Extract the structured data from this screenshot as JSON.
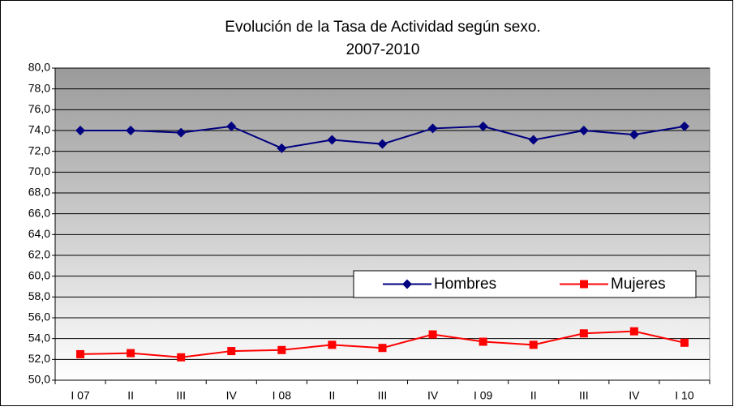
{
  "chart_data": {
    "type": "line",
    "title": "Evolución de la Tasa de Actividad según sexo.",
    "subtitle": "2007-2010",
    "categories": [
      "I 07",
      "II",
      "III",
      "IV",
      "I 08",
      "II",
      "III",
      "IV",
      "I 09",
      "II",
      "III",
      "IV",
      "I 10"
    ],
    "series": [
      {
        "name": "Hombres",
        "color": "#000080",
        "marker": "diamond",
        "values": [
          74.0,
          74.0,
          73.8,
          74.4,
          72.3,
          73.1,
          72.7,
          74.2,
          74.4,
          73.1,
          74.0,
          73.6,
          74.4
        ]
      },
      {
        "name": "Mujeres",
        "color": "#ff0000",
        "marker": "square",
        "values": [
          52.5,
          52.6,
          52.2,
          52.8,
          52.9,
          53.4,
          53.1,
          54.4,
          53.7,
          53.4,
          54.5,
          54.7,
          53.6
        ]
      }
    ],
    "ylim": [
      50,
      80
    ],
    "yticks": [
      {
        "value": 50,
        "label": "50,0"
      },
      {
        "value": 52,
        "label": "52,0"
      },
      {
        "value": 54,
        "label": "54,0"
      },
      {
        "value": 56,
        "label": "56,0"
      },
      {
        "value": 58,
        "label": "58,0"
      },
      {
        "value": 60,
        "label": "60,0"
      },
      {
        "value": 62,
        "label": "62,0"
      },
      {
        "value": 64,
        "label": "64,0"
      },
      {
        "value": 66,
        "label": "66,0"
      },
      {
        "value": 68,
        "label": "68,0"
      },
      {
        "value": 70,
        "label": "70,0"
      },
      {
        "value": 72,
        "label": "72,0"
      },
      {
        "value": 74,
        "label": "74,0"
      },
      {
        "value": 76,
        "label": "76,0"
      },
      {
        "value": 78,
        "label": "78,0"
      },
      {
        "value": 80,
        "label": "80,0"
      }
    ],
    "grid": true,
    "legend": "lower right"
  }
}
